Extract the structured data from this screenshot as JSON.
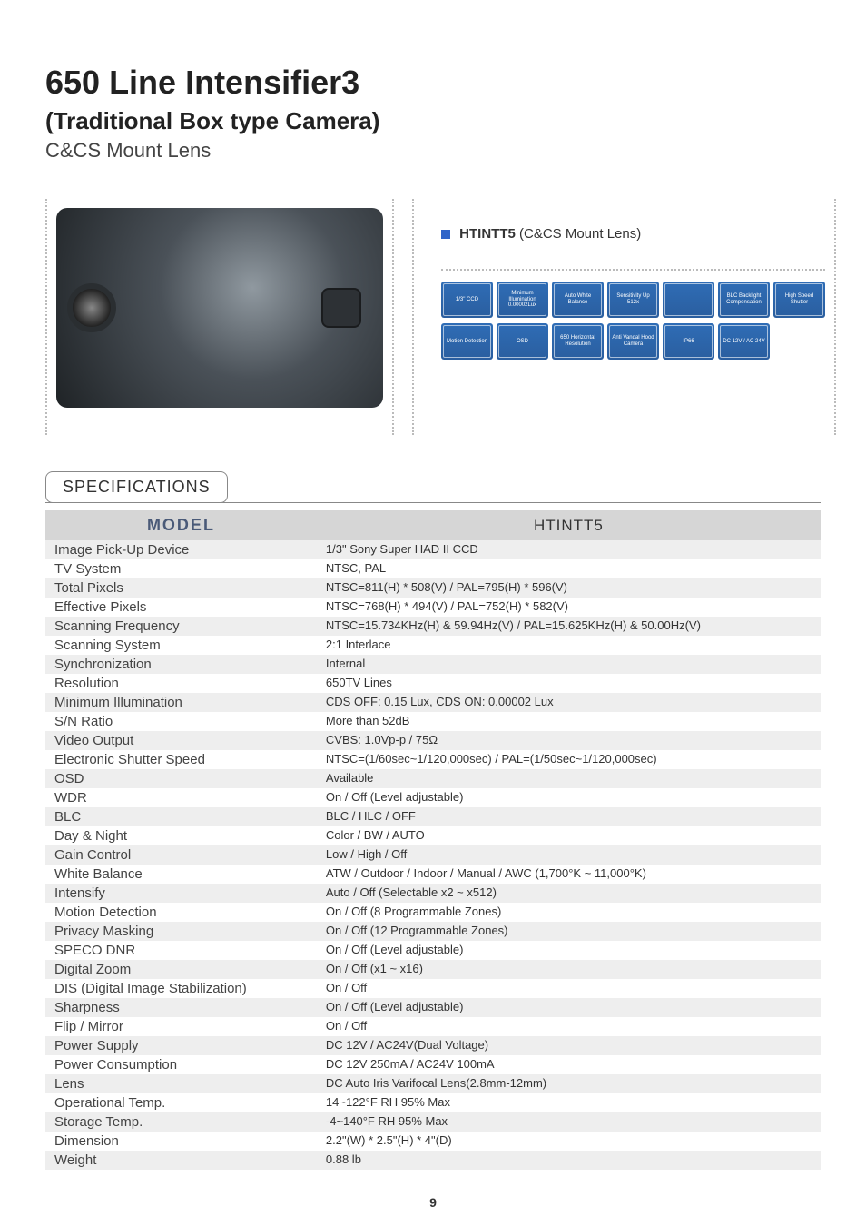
{
  "header": {
    "title": "650 Line Intensifier3",
    "subtitle": "(Traditional Box type Camera)",
    "lens_line": "C&CS Mount Lens"
  },
  "hero": {
    "model_code": "HTINTT5",
    "model_suffix": " (C&CS Mount Lens)",
    "feature_badges_row1": [
      "1/3\" CCD",
      "Minimum Illumination 0.00002Lux",
      "Auto White Balance",
      "Sensitivity Up 512x",
      "",
      "BLC Backlight Compensation",
      "High Speed Shutter"
    ],
    "feature_badges_row2": [
      "Motion Detection",
      "OSD",
      "650 Horizontal Resolution",
      "Anti Vandal Hood Camera",
      "IP66",
      "DC 12V / AC 24V"
    ]
  },
  "spec_section_title": "SPECIFICATIONS",
  "spec_table": {
    "model_header": "MODEL",
    "model_value": "HTINTT5",
    "rows": [
      {
        "label": "Image Pick-Up Device",
        "value": "1/3\" Sony Super HAD II CCD"
      },
      {
        "label": "TV System",
        "value": "NTSC, PAL"
      },
      {
        "label": "Total Pixels",
        "value": "NTSC=811(H) * 508(V) / PAL=795(H) * 596(V)"
      },
      {
        "label": "Effective Pixels",
        "value": "NTSC=768(H) * 494(V) / PAL=752(H) * 582(V)"
      },
      {
        "label": "Scanning Frequency",
        "value": "NTSC=15.734KHz(H) & 59.94Hz(V) / PAL=15.625KHz(H) & 50.00Hz(V)"
      },
      {
        "label": "Scanning System",
        "value": "2:1 Interlace"
      },
      {
        "label": "Synchronization",
        "value": "Internal"
      },
      {
        "label": "Resolution",
        "value": "650TV Lines"
      },
      {
        "label": "Minimum Illumination",
        "value": "CDS OFF: 0.15 Lux, CDS ON: 0.00002 Lux"
      },
      {
        "label": "S/N Ratio",
        "value": "More than 52dB"
      },
      {
        "label": "Video Output",
        "value": "CVBS: 1.0Vp-p / 75Ω"
      },
      {
        "label": "Electronic Shutter Speed",
        "value": "NTSC=(1/60sec~1/120,000sec) / PAL=(1/50sec~1/120,000sec)"
      },
      {
        "label": "OSD",
        "value": "Available"
      },
      {
        "label": "WDR",
        "value": "On / Off (Level adjustable)"
      },
      {
        "label": "BLC",
        "value": "BLC / HLC / OFF"
      },
      {
        "label": "Day & Night",
        "value": "Color / BW / AUTO"
      },
      {
        "label": "Gain Control",
        "value": "Low / High / Off"
      },
      {
        "label": "White Balance",
        "value": "ATW / Outdoor / Indoor / Manual / AWC (1,700°K ~ 11,000°K)"
      },
      {
        "label": "Intensify",
        "value": "Auto / Off (Selectable x2 ~ x512)"
      },
      {
        "label": "Motion Detection",
        "value": "On / Off (8 Programmable Zones)"
      },
      {
        "label": "Privacy Masking",
        "value": "On / Off (12 Programmable Zones)"
      },
      {
        "label": "SPECO DNR",
        "value": "On / Off (Level adjustable)"
      },
      {
        "label": "Digital Zoom",
        "value": "On / Off (x1 ~ x16)"
      },
      {
        "label": "DIS (Digital Image Stabilization)",
        "value": "On / Off"
      },
      {
        "label": "Sharpness",
        "value": "On / Off (Level adjustable)"
      },
      {
        "label": "Flip / Mirror",
        "value": "On / Off"
      },
      {
        "label": "Power Supply",
        "value": "DC 12V / AC24V(Dual Voltage)"
      },
      {
        "label": "Power Consumption",
        "value": "DC 12V 250mA / AC24V 100mA"
      },
      {
        "label": "Lens",
        "value": "DC Auto Iris Varifocal Lens(2.8mm-12mm)"
      },
      {
        "label": "Operational Temp.",
        "value": "14~122°F RH 95% Max"
      },
      {
        "label": "Storage Temp.",
        "value": "-4~140°F RH 95% Max"
      },
      {
        "label": "Dimension",
        "value": "2.2\"(W) * 2.5\"(H) * 4\"(D)"
      },
      {
        "label": "Weight",
        "value": "0.88 lb"
      }
    ]
  },
  "page_number": "9",
  "colors": {
    "badge_bg": "#2f6db6",
    "header_bg": "#d6d6d6",
    "row_odd": "#eeeeee",
    "row_even": "#ffffff",
    "accent_square": "#2f64c8"
  }
}
